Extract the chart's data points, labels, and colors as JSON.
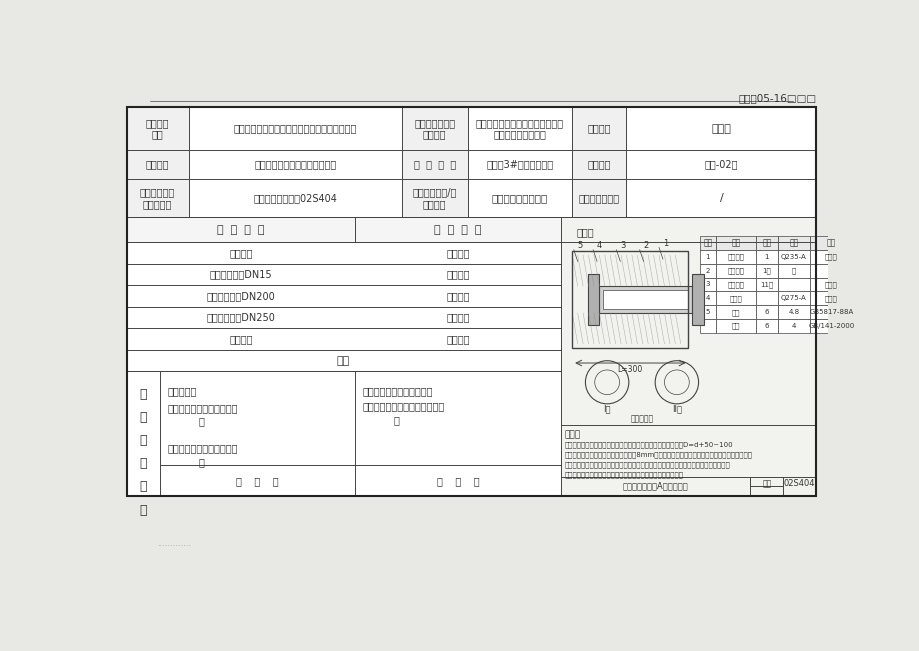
{
  "page_bg": "#e8e8e4",
  "doc_bg": "#ffffff",
  "line_color": "#444444",
  "text_color": "#333333",
  "title_code": "编号：05-16□□□",
  "header_rows": [
    {
      "label1": "单位工程\n名称",
      "val1": "仙岩街道农改房改造安装工程（楼丰安置地块）",
      "label2": "分部（子分部）\n工程名称",
      "val2": "建筑给水、排水及采暖（建筑中水\n系统及游泳池系统）",
      "label3": "项目经理",
      "val3": "江兆锦"
    },
    {
      "label1": "施工单位",
      "val1": "福建海峡金岸建设工程有限公司",
      "label2": "验  收  部  位",
      "val2": "地下室3#楼区消防水池",
      "label3": "施工图号",
      "val3": "水施-02修"
    },
    {
      "label1": "施工执行标准\n名称及编号",
      "val1": "《防水套管图集》02S404",
      "label2": "分项工程名称/检\n验批编号",
      "val2": "排水管道及配件安装",
      "label3": "联系单号或日期",
      "val3": "/"
    }
  ],
  "check_items": [
    {
      "item": "施工依据",
      "status": "符合要求"
    },
    {
      "item": "柔性防水套管DN15",
      "status": "符合要求"
    },
    {
      "item": "柔性防水套管DN200",
      "status": "符合要求"
    },
    {
      "item": "柔性防水套管DN250",
      "status": "符合要求"
    },
    {
      "item": "管道材质",
      "status": "符合要求"
    }
  ],
  "hege": "合格",
  "vertical_label": [
    "检",
    "查",
    "验",
    "收",
    "意",
    "见"
  ],
  "施工单位text": "施工单位：\n项目专业质量检查员（签名\n）\n\n项目专业技术负责人（签名\n）",
  "监理text": "专业监理工程师（签名）：\n（建设单位项目专业技术负责人\n）",
  "date_text": "年    月    日",
  "note_title": "说明：",
  "note_lines": [
    "管道为消防水池连接，按验施工图图理依据规范要求；套管尺寸D=d+50~100",
    "刚性套管闭合安装采用钢板制作，采用8mm防锈钢板规范制作；在符合设计书规范要求范本套，",
    "刚性套管闭合设置以还须放置于板顶层砼浇上完后，预置位置、标高及完，宁波施工重荷",
    "符合设计及规范求；刚性套管闭合安装规格符合设计及规范求。"
  ],
  "diagram_label": "附图：",
  "bottom_label1": "柔性防水套管（A型）安装图",
  "bottom_label2": "图集",
  "bottom_label3": "02S404",
  "dotted_text": "·············",
  "mat_headers": [
    "序号",
    "名称",
    "数量",
    "材料",
    "备注"
  ],
  "mat_rows": [
    [
      "1",
      "法兰套管",
      "1",
      "Q235-A",
      "标准件"
    ],
    [
      "2",
      "套管翼环",
      "1件",
      "钢",
      ""
    ],
    [
      "3",
      "套管填塞",
      "11件",
      "",
      "橡胶件"
    ],
    [
      "4",
      "止水环",
      "",
      "Q275-A",
      "橡胶件"
    ],
    [
      "5",
      "螺栓",
      "6",
      "4.8",
      "GB5817-88A"
    ],
    [
      "",
      "螺母",
      "6",
      "4",
      "GB/141-2000"
    ]
  ]
}
